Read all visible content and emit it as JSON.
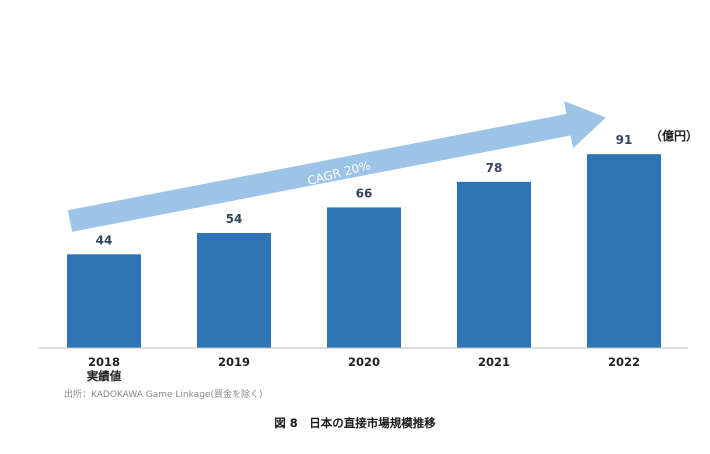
{
  "chart_data": {
    "type": "bar",
    "categories": [
      "2018\n実績値",
      "2019",
      "2020",
      "2021",
      "2022"
    ],
    "values": [
      44,
      54,
      66,
      78,
      91
    ],
    "unit_label": "（億円）",
    "annotation": "CAGR 20%",
    "bar_color": "#2e75b6",
    "arrow_color": "#9dc3e6",
    "ylim": [
      0,
      100
    ],
    "grid": false,
    "legend": "none"
  },
  "source_note": "出所：KADOKAWA Game Linkage(買金を除く)",
  "figure_caption": "図 8　日本の直接市場規模推移"
}
